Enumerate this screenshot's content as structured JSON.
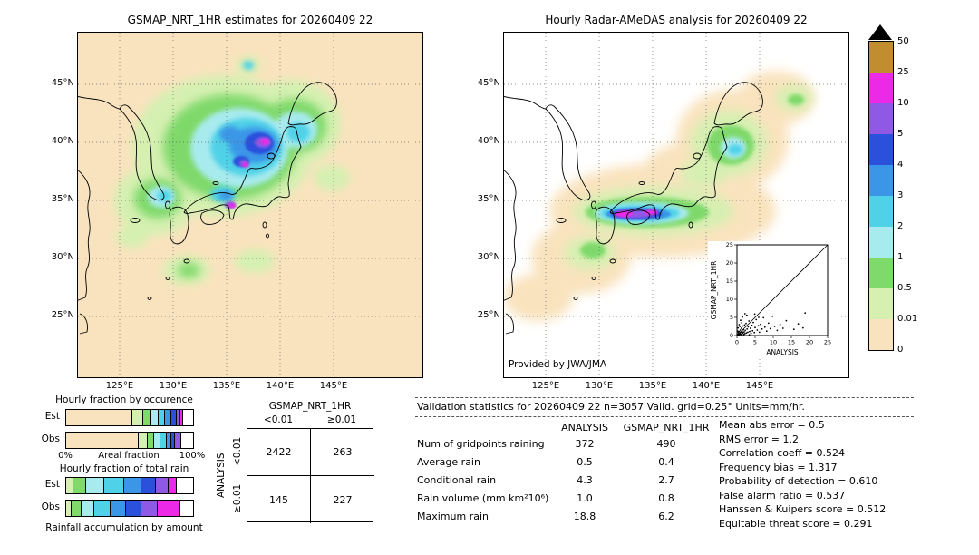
{
  "left_map": {
    "title": "GSMAP_NRT_1HR estimates for 20260409 22",
    "lat_ticks": [
      "45°N",
      "40°N",
      "35°N",
      "30°N",
      "25°N"
    ],
    "lon_ticks": [
      "125°E",
      "130°E",
      "135°E",
      "140°E",
      "145°E"
    ]
  },
  "right_map": {
    "title": "Hourly Radar-AMeDAS analysis for 20260409 22",
    "lat_ticks": [
      "45°N",
      "40°N",
      "35°N",
      "30°N",
      "25°N"
    ],
    "lon_ticks": [
      "125°E",
      "130°E",
      "135°E",
      "140°E",
      "145°E"
    ],
    "credit": "Provided by JWA/JMA"
  },
  "palette": {
    "peach": "#F9E3BE",
    "palegreen": "#D5F0B1",
    "green": "#7FD96B",
    "lightcyan": "#A8EBEE",
    "cyan": "#4FD1E8",
    "medblue": "#3B96E8",
    "blue": "#2A50DC",
    "violet": "#8F59E6",
    "magenta": "#EC29E6",
    "mustard": "#C08E2E",
    "white": "#FFFFFF"
  },
  "colorbar": {
    "units": "mm/hr",
    "labels_top_to_bottom": [
      "50",
      "25",
      "10",
      "5",
      "4",
      "3",
      "2",
      "1",
      "0.5",
      "0.01",
      "0"
    ],
    "colors_top_to_bottom": [
      "mustard",
      "magenta",
      "violet",
      "blue",
      "medblue",
      "cyan",
      "lightcyan",
      "green",
      "palegreen",
      "peach"
    ]
  },
  "fractions": {
    "occurrence_title": "Hourly fraction by occurence",
    "total_title": "Hourly fraction of total rain",
    "row_labels": {
      "est": "Est",
      "obs": "Obs"
    },
    "axis": {
      "left": "0%",
      "center": "Areal fraction",
      "right": "100%"
    },
    "caption": "Rainfall accumulation by amount"
  },
  "contingency": {
    "col_group": "GSMAP_NRT_1HR",
    "row_group": "ANALYSIS",
    "col_labels": [
      "<0.01",
      "≥0.01"
    ],
    "row_labels": [
      "<0.01",
      "≥0.01"
    ],
    "cells": [
      [
        "2422",
        "263"
      ],
      [
        "145",
        "227"
      ]
    ]
  },
  "validation": {
    "header": "Validation statistics for 20260409 22  n=3057 Valid. grid=0.25° Units=mm/hr.",
    "col_headers": [
      "ANALYSIS",
      "GSMAP_NRT_1HR"
    ],
    "rows": [
      {
        "label": "Num of gridpoints raining",
        "analysis": "372",
        "gsmap": "490"
      },
      {
        "label": "Average rain",
        "analysis": "0.5",
        "gsmap": "0.4"
      },
      {
        "label": "Conditional rain",
        "analysis": "4.3",
        "gsmap": "2.7"
      },
      {
        "label": "Rain volume (mm km²10⁶)",
        "analysis": "1.0",
        "gsmap": "0.8"
      },
      {
        "label": "Maximum rain",
        "analysis": "18.8",
        "gsmap": "6.2"
      }
    ],
    "stats": [
      {
        "label": "Mean abs error",
        "value": "0.5"
      },
      {
        "label": "RMS error",
        "value": "1.2"
      },
      {
        "label": "Correlation coeff",
        "value": "0.524"
      },
      {
        "label": "Frequency bias",
        "value": "1.317"
      },
      {
        "label": "Probability of detection",
        "value": "0.610"
      },
      {
        "label": "False alarm ratio",
        "value": "0.537"
      },
      {
        "label": "Hanssen & Kuipers score",
        "value": "0.512"
      },
      {
        "label": "Equitable threat score",
        "value": "0.291"
      }
    ]
  },
  "chart_data": [
    {
      "id": "gsmap_map",
      "type": "heatmap",
      "title": "GSMAP_NRT_1HR estimates for 20260409 22",
      "x_ticks": [
        "125°E",
        "130°E",
        "135°E",
        "140°E",
        "145°E"
      ],
      "y_ticks": [
        "45°N",
        "40°N",
        "35°N",
        "30°N",
        "25°N"
      ],
      "units": "mm/hr",
      "levels": [
        0,
        0.01,
        0.5,
        1,
        2,
        3,
        4,
        5,
        10,
        25,
        50
      ],
      "level_colors": [
        "#F9E3BE",
        "#D5F0B1",
        "#7FD96B",
        "#A8EBEE",
        "#4FD1E8",
        "#3B96E8",
        "#2A50DC",
        "#8F59E6",
        "#EC29E6",
        "#C08E2E"
      ]
    },
    {
      "id": "radar_map",
      "type": "heatmap",
      "title": "Hourly Radar-AMeDAS analysis for 20260409 22",
      "x_ticks": [
        "125°E",
        "130°E",
        "135°E",
        "140°E",
        "145°E"
      ],
      "y_ticks": [
        "45°N",
        "40°N",
        "35°N",
        "30°N",
        "25°N"
      ],
      "units": "mm/hr",
      "levels": [
        0,
        0.01,
        0.5,
        1,
        2,
        3,
        4,
        5,
        10,
        25,
        50
      ],
      "credit": "Provided by JWA/JMA"
    },
    {
      "id": "inset_scatter",
      "type": "scatter",
      "xlabel": "ANALYSIS",
      "ylabel": "GSMAP_NRT_1HR",
      "xlim": [
        0,
        25
      ],
      "ylim": [
        0,
        25
      ],
      "ticks": [
        0,
        5,
        10,
        15,
        20,
        25
      ],
      "identity_line": true,
      "points": [
        [
          0.1,
          0.1
        ],
        [
          0.2,
          0.4
        ],
        [
          0.3,
          0.1
        ],
        [
          0.4,
          0.8
        ],
        [
          0.5,
          0.2
        ],
        [
          0.6,
          1.1
        ],
        [
          0.7,
          0.3
        ],
        [
          0.8,
          0.6
        ],
        [
          0.9,
          1.5
        ],
        [
          1.0,
          0.4
        ],
        [
          1.1,
          0.9
        ],
        [
          1.2,
          2.0
        ],
        [
          1.3,
          0.2
        ],
        [
          1.4,
          1.2
        ],
        [
          1.5,
          0.6
        ],
        [
          1.6,
          2.6
        ],
        [
          1.7,
          0.8
        ],
        [
          1.8,
          1.6
        ],
        [
          1.9,
          0.3
        ],
        [
          2.0,
          1.0
        ],
        [
          2.1,
          2.9
        ],
        [
          2.2,
          0.5
        ],
        [
          2.3,
          1.4
        ],
        [
          2.5,
          3.3
        ],
        [
          2.6,
          0.7
        ],
        [
          2.8,
          1.8
        ],
        [
          3.0,
          0.9
        ],
        [
          3.1,
          2.4
        ],
        [
          3.3,
          4.0
        ],
        [
          3.5,
          1.1
        ],
        [
          3.7,
          2.0
        ],
        [
          3.9,
          0.6
        ],
        [
          4.1,
          2.8
        ],
        [
          4.3,
          1.3
        ],
        [
          4.5,
          3.6
        ],
        [
          4.8,
          0.8
        ],
        [
          5.0,
          2.2
        ],
        [
          5.3,
          4.4
        ],
        [
          5.6,
          1.5
        ],
        [
          5.9,
          2.7
        ],
        [
          6.2,
          0.9
        ],
        [
          6.5,
          3.1
        ],
        [
          6.9,
          1.8
        ],
        [
          7.3,
          4.9
        ],
        [
          7.7,
          2.3
        ],
        [
          8.2,
          1.2
        ],
        [
          8.7,
          3.4
        ],
        [
          9.2,
          1.9
        ],
        [
          9.8,
          5.3
        ],
        [
          10.4,
          2.5
        ],
        [
          11.1,
          1.4
        ],
        [
          11.9,
          3.0
        ],
        [
          12.7,
          2.0
        ],
        [
          13.6,
          4.1
        ],
        [
          14.6,
          2.6
        ],
        [
          15.7,
          1.7
        ],
        [
          16.9,
          3.2
        ],
        [
          18.2,
          2.1
        ],
        [
          18.8,
          6.2
        ],
        [
          0.3,
          2.1
        ],
        [
          0.6,
          3.0
        ],
        [
          1.0,
          4.2
        ],
        [
          1.5,
          5.1
        ],
        [
          2.2,
          6.0
        ],
        [
          0.2,
          1.2
        ],
        [
          0.8,
          2.5
        ],
        [
          1.3,
          3.5
        ],
        [
          2.7,
          5.6
        ],
        [
          3.4,
          0.2
        ],
        [
          4.9,
          5.9
        ],
        [
          6.0,
          5.0
        ]
      ]
    },
    {
      "id": "occurrence_bars",
      "type": "bar",
      "orientation": "horizontal-stacked",
      "title": "Hourly fraction by occurence",
      "xlabel": "Areal fraction",
      "xlim_pct": [
        0,
        100
      ],
      "rows": [
        {
          "name": "Est",
          "segments": [
            {
              "color": "peach",
              "pct": 52
            },
            {
              "color": "palegreen",
              "pct": 9
            },
            {
              "color": "green",
              "pct": 6
            },
            {
              "color": "lightcyan",
              "pct": 6
            },
            {
              "color": "cyan",
              "pct": 5
            },
            {
              "color": "medblue",
              "pct": 5
            },
            {
              "color": "blue",
              "pct": 4
            },
            {
              "color": "violet",
              "pct": 3
            },
            {
              "color": "magenta",
              "pct": 2
            },
            {
              "color": "white",
              "pct": 8
            }
          ]
        },
        {
          "name": "Obs",
          "segments": [
            {
              "color": "peach",
              "pct": 57
            },
            {
              "color": "palegreen",
              "pct": 7
            },
            {
              "color": "green",
              "pct": 5
            },
            {
              "color": "lightcyan",
              "pct": 5
            },
            {
              "color": "cyan",
              "pct": 5
            },
            {
              "color": "medblue",
              "pct": 4
            },
            {
              "color": "blue",
              "pct": 3
            },
            {
              "color": "violet",
              "pct": 3
            },
            {
              "color": "magenta",
              "pct": 2
            },
            {
              "color": "white",
              "pct": 9
            }
          ]
        }
      ]
    },
    {
      "id": "total_bars",
      "type": "bar",
      "orientation": "horizontal-stacked",
      "title": "Hourly fraction of total rain",
      "caption": "Rainfall accumulation by amount",
      "xlim_pct": [
        0,
        100
      ],
      "rows": [
        {
          "name": "Est",
          "segments": [
            {
              "color": "palegreen",
              "pct": 6
            },
            {
              "color": "green",
              "pct": 10
            },
            {
              "color": "lightcyan",
              "pct": 14
            },
            {
              "color": "cyan",
              "pct": 16
            },
            {
              "color": "medblue",
              "pct": 13
            },
            {
              "color": "blue",
              "pct": 12
            },
            {
              "color": "violet",
              "pct": 10
            },
            {
              "color": "magenta",
              "pct": 6
            },
            {
              "color": "white",
              "pct": 13
            }
          ]
        },
        {
          "name": "Obs",
          "segments": [
            {
              "color": "palegreen",
              "pct": 4
            },
            {
              "color": "green",
              "pct": 8
            },
            {
              "color": "lightcyan",
              "pct": 10
            },
            {
              "color": "cyan",
              "pct": 13
            },
            {
              "color": "medblue",
              "pct": 12
            },
            {
              "color": "blue",
              "pct": 12
            },
            {
              "color": "violet",
              "pct": 13
            },
            {
              "color": "magenta",
              "pct": 18
            },
            {
              "color": "white",
              "pct": 10
            }
          ]
        }
      ]
    },
    {
      "id": "contingency_table",
      "type": "table",
      "col_group": "GSMAP_NRT_1HR",
      "row_group": "ANALYSIS",
      "cols": [
        "<0.01",
        "≥0.01"
      ],
      "rows": [
        "<0.01",
        "≥0.01"
      ],
      "cells": [
        [
          2422,
          263
        ],
        [
          145,
          227
        ]
      ]
    },
    {
      "id": "validation_table",
      "type": "table",
      "title": "Validation statistics for 20260409 22  n=3057 Valid. grid=0.25° Units=mm/hr.",
      "columns": [
        "ANALYSIS",
        "GSMAP_NRT_1HR"
      ],
      "rows": [
        [
          "Num of gridpoints raining",
          372,
          490
        ],
        [
          "Average rain",
          0.5,
          0.4
        ],
        [
          "Conditional rain",
          4.3,
          2.7
        ],
        [
          "Rain volume (mm km²10⁶)",
          1.0,
          0.8
        ],
        [
          "Maximum rain",
          18.8,
          6.2
        ]
      ],
      "stats": [
        [
          "Mean abs error",
          0.5
        ],
        [
          "RMS error",
          1.2
        ],
        [
          "Correlation coeff",
          0.524
        ],
        [
          "Frequency bias",
          1.317
        ],
        [
          "Probability of detection",
          0.61
        ],
        [
          "False alarm ratio",
          0.537
        ],
        [
          "Hanssen & Kuipers score",
          0.512
        ],
        [
          "Equitable threat score",
          0.291
        ]
      ]
    }
  ]
}
